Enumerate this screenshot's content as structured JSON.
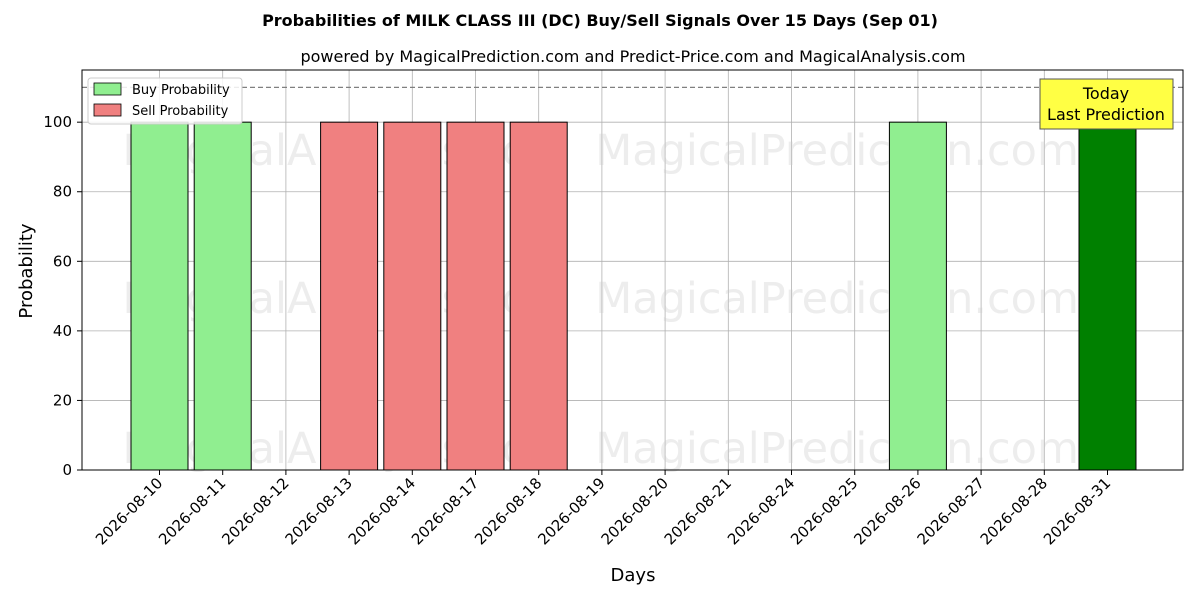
{
  "chart_data": {
    "type": "bar",
    "title": "Probabilities of MILK CLASS III (DC) Buy/Sell Signals Over 15 Days (Sep 01)",
    "subtitle": "powered by MagicalPrediction.com and Predict-Price.com and MagicalAnalysis.com",
    "xlabel": "Days",
    "ylabel": "Probability",
    "ylim": [
      0,
      115
    ],
    "yticks": [
      0,
      20,
      40,
      60,
      80,
      100
    ],
    "grid": true,
    "legend_position": "top-left",
    "reference_line": 110,
    "categories": [
      "2026-08-10",
      "2026-08-11",
      "2026-08-12",
      "2026-08-13",
      "2026-08-14",
      "2026-08-17",
      "2026-08-18",
      "2026-08-19",
      "2026-08-20",
      "2026-08-21",
      "2026-08-24",
      "2026-08-25",
      "2026-08-26",
      "2026-08-27",
      "2026-08-28",
      "2026-08-31"
    ],
    "series": [
      {
        "name": "Buy Probability",
        "color": "#90ee90",
        "values": [
          100,
          100,
          0,
          0,
          0,
          0,
          0,
          0,
          0,
          0,
          0,
          0,
          100,
          0,
          0,
          0
        ]
      },
      {
        "name": "Sell Probability",
        "color": "#f08080",
        "values": [
          0,
          0,
          0,
          100,
          100,
          100,
          100,
          0,
          0,
          0,
          0,
          0,
          0,
          0,
          0,
          0
        ]
      },
      {
        "color": "#008000",
        "values": [
          0,
          0,
          0,
          0,
          0,
          0,
          0,
          0,
          0,
          0,
          0,
          0,
          0,
          0,
          0,
          100
        ]
      }
    ],
    "annotation": {
      "lines": [
        "Today",
        "Last Prediction"
      ],
      "color": "#ffff44"
    },
    "watermarks": [
      "MagicalAnalysis.com",
      "MagicalPrediction.com"
    ]
  }
}
